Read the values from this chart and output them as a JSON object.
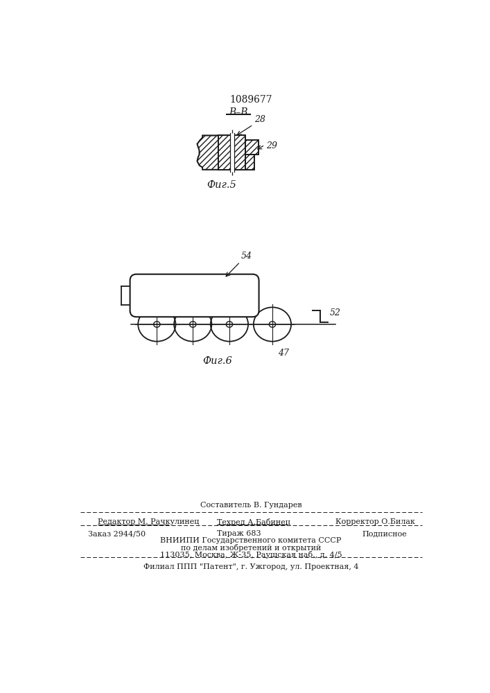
{
  "patent_number": "1089677",
  "bg_color": "#ffffff",
  "line_color": "#1a1a1a",
  "fig5_label": "Фиг.5",
  "fig6_label": "Фиг.6",
  "section_label": "B–B",
  "label_28": "28",
  "label_29": "29",
  "label_47": "47",
  "label_52": "52",
  "label_54": "54",
  "footer_line1": "Составитель В. Гундарев",
  "footer_line2_left": "Редактор М. Рачкулинец",
  "footer_line2_mid": "Техред А.Бабинец",
  "footer_line2_right": "Корректор О.Билак",
  "footer_line3_left": "Заказ 2944/50",
  "footer_line3_mid": "Тираж 683",
  "footer_line3_right": "Подписное",
  "footer_line4": "ВНИИПИ Государственного комитета СССР",
  "footer_line5": "по делам изобретений и открытий",
  "footer_line6": "113035, Москва, Ж-35, Раушская наб., д. 4/5",
  "footer_line7": "Филиал ППП \"Патент\", г. Ужгород, ул. Проектная, 4"
}
